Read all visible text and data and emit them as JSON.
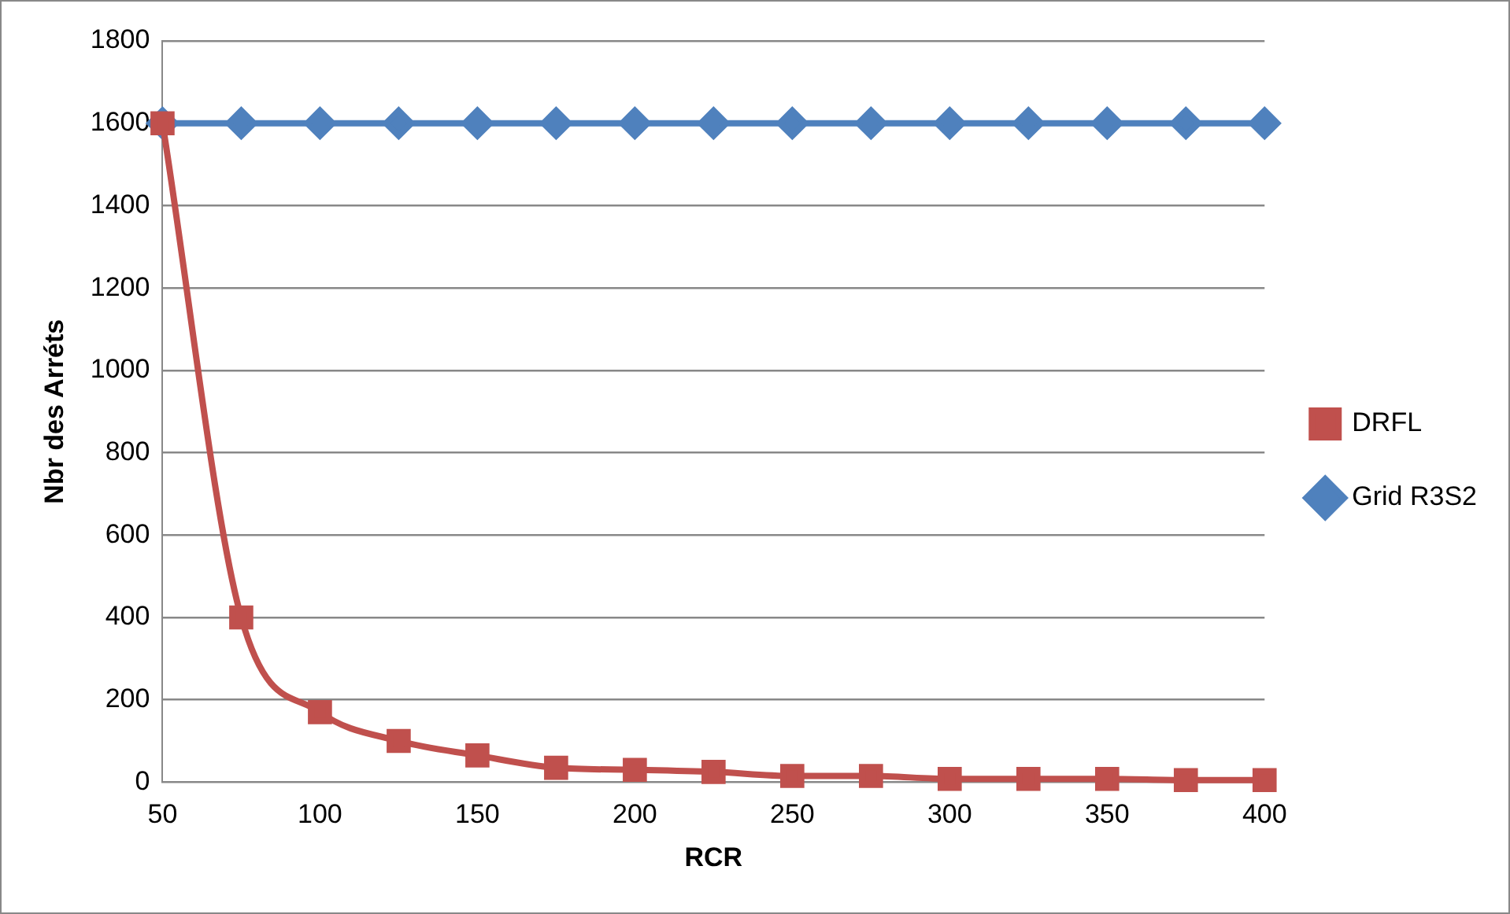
{
  "chart_data": {
    "type": "line",
    "xlabel": "RCR",
    "ylabel": "Nbr des Arréts",
    "x": [
      50,
      75,
      100,
      125,
      150,
      175,
      200,
      225,
      250,
      275,
      300,
      325,
      350,
      375,
      400
    ],
    "xlim": [
      50,
      400
    ],
    "xticks": [
      50,
      100,
      150,
      200,
      250,
      300,
      350,
      400
    ],
    "ylim": [
      0,
      1800
    ],
    "yticks": [
      0,
      200,
      400,
      600,
      800,
      1000,
      1200,
      1400,
      1600,
      1800
    ],
    "grid": "y",
    "legend": "right",
    "series": [
      {
        "name": "Grid R3S2",
        "color": "#4f81bd",
        "marker": "diamond",
        "values": [
          1600,
          1600,
          1600,
          1600,
          1600,
          1600,
          1600,
          1600,
          1600,
          1600,
          1600,
          1600,
          1600,
          1600,
          1600
        ]
      },
      {
        "name": "DRFL",
        "color": "#c0504d",
        "marker": "square",
        "values": [
          1600,
          400,
          170,
          100,
          65,
          35,
          30,
          25,
          15,
          15,
          8,
          8,
          8,
          5,
          5
        ]
      }
    ]
  }
}
